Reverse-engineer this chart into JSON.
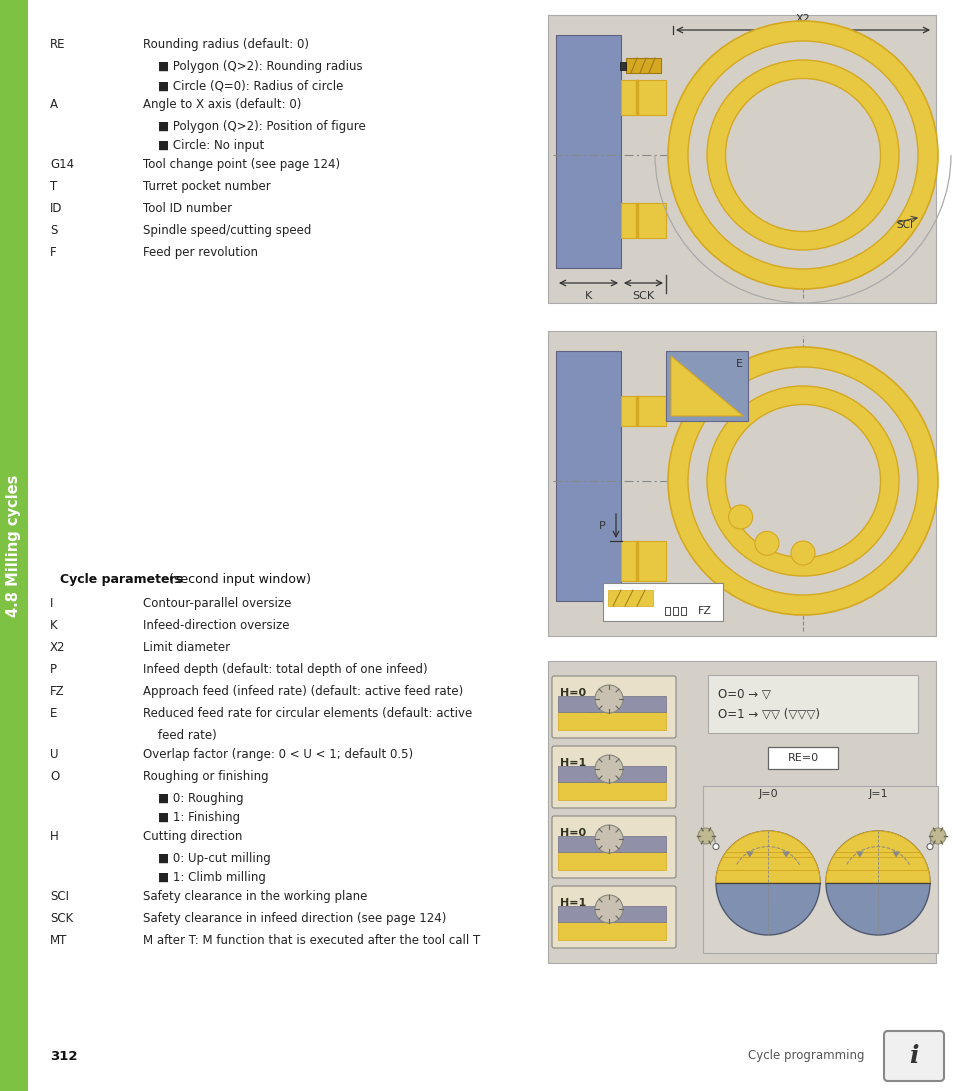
{
  "bg_color": "#ffffff",
  "sidebar_color": "#7dc243",
  "sidebar_text": "4.8 Milling cycles",
  "page_number": "312",
  "right_label": "Cycle programming",
  "diagram_bg": "#d4d0c8",
  "yellow": "#e8c840",
  "yellow_dark": "#d4a820",
  "gray_fill": "#8090b0",
  "params_section1": [
    [
      "RE",
      "Rounding radius (default: 0)",
      false
    ],
    [
      "",
      "■ Polygon (Q>2): Rounding radius",
      true
    ],
    [
      "",
      "■ Circle (Q=0): Radius of circle",
      true
    ],
    [
      "A",
      "Angle to X axis (default: 0)",
      false
    ],
    [
      "",
      "■ Polygon (Q>2): Position of figure",
      true
    ],
    [
      "",
      "■ Circle: No input",
      true
    ],
    [
      "G14",
      "Tool change point (see page 124)",
      false
    ],
    [
      "T",
      "Turret pocket number",
      false
    ],
    [
      "ID",
      "Tool ID number",
      false
    ],
    [
      "S",
      "Spindle speed/cutting speed",
      false
    ],
    [
      "F",
      "Feed per revolution",
      false
    ]
  ],
  "cycle_params_title": "Cycle parameters",
  "cycle_params_subtitle": " (second input window)",
  "params_section2": [
    [
      "I",
      "Contour-parallel oversize",
      false
    ],
    [
      "K",
      "Infeed-direction oversize",
      false
    ],
    [
      "X2",
      "Limit diameter",
      false
    ],
    [
      "P",
      "Infeed depth (default: total depth of one infeed)",
      false
    ],
    [
      "FZ",
      "Approach feed (infeed rate) (default: active feed rate)",
      false
    ],
    [
      "E",
      "Reduced feed rate for circular elements (default: active",
      false
    ],
    [
      "",
      "feed rate)",
      true
    ],
    [
      "U",
      "Overlap factor (range: 0 < U < 1; default 0.5)",
      false
    ],
    [
      "O",
      "Roughing or finishing",
      false
    ],
    [
      "",
      "■ 0: Roughing",
      true
    ],
    [
      "",
      "■ 1: Finishing",
      true
    ],
    [
      "H",
      "Cutting direction",
      false
    ],
    [
      "",
      "■ 0: Up-cut milling",
      true
    ],
    [
      "",
      "■ 1: Climb milling",
      true
    ],
    [
      "SCI",
      "Safety clearance in the working plane",
      false
    ],
    [
      "SCK",
      "Safety clearance in infeed direction (see page 124)",
      false
    ],
    [
      "MT",
      "M after T: M function that is executed after the tool call T",
      false
    ]
  ]
}
